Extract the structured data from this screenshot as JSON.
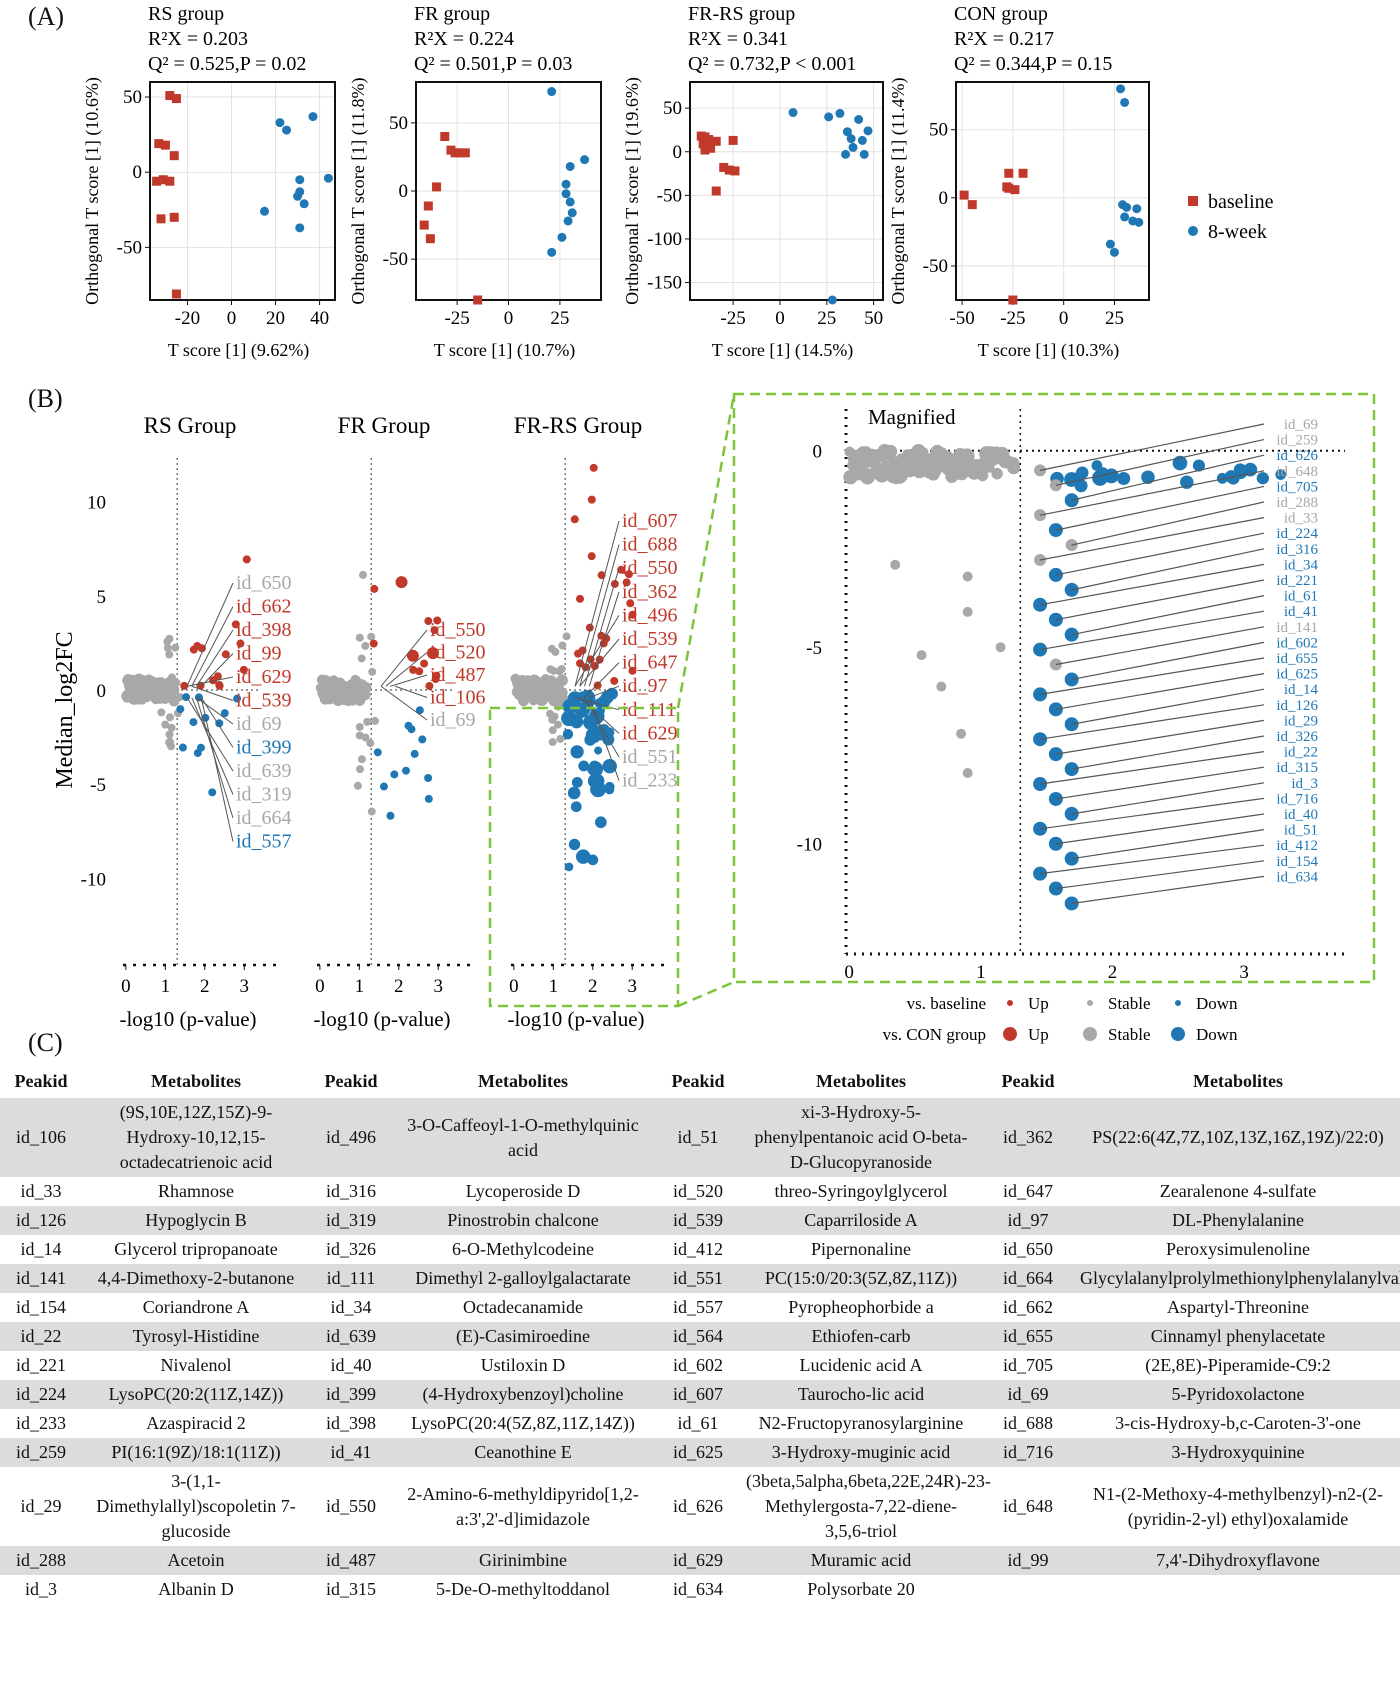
{
  "panel_labels": {
    "a": "(A)",
    "b": "(B)",
    "c": "(C)"
  },
  "colors": {
    "baseline": "#c0392b",
    "eight_week": "#1f78b4",
    "up": "#c0392b",
    "down": "#1f78b4",
    "stable": "#a8a8a8",
    "highlight_border": "#7dc43b",
    "table_shade": "#dcdcdc"
  },
  "chart_data": [
    {
      "type": "scatter",
      "panel": "A",
      "title": "RS group",
      "stats": [
        "R²X = 0.203",
        "Q² = 0.525,P = 0.02"
      ],
      "xlabel": "T score [1] (9.62%)",
      "ylabel": "Orthogonal T score [1] (10.6%)",
      "xlim": [
        -37,
        47
      ],
      "ylim": [
        -85,
        60
      ],
      "xticks": [
        -20,
        0,
        20,
        40
      ],
      "yticks": [
        -50,
        0,
        50
      ],
      "series": [
        {
          "name": "baseline",
          "marker": "square",
          "points": [
            [
              -28,
              51
            ],
            [
              -25,
              49
            ],
            [
              -33,
              19
            ],
            [
              -30,
              18
            ],
            [
              -26,
              11
            ],
            [
              -34,
              -6
            ],
            [
              -31,
              -5
            ],
            [
              -28,
              -6
            ],
            [
              -32,
              -31
            ],
            [
              -26,
              -30
            ],
            [
              -25,
              -81
            ]
          ]
        },
        {
          "name": "8-week",
          "marker": "circle",
          "points": [
            [
              22,
              33
            ],
            [
              25,
              28
            ],
            [
              37,
              37
            ],
            [
              44,
              -4
            ],
            [
              31,
              -5
            ],
            [
              31,
              -13
            ],
            [
              30,
              -16
            ],
            [
              33,
              -21
            ],
            [
              15,
              -26
            ],
            [
              31,
              -37
            ]
          ]
        }
      ]
    },
    {
      "type": "scatter",
      "panel": "A",
      "title": "FR group",
      "stats": [
        "R²X = 0.224",
        "Q² = 0.501,P = 0.03"
      ],
      "xlabel": "T score [1] (10.7%)",
      "ylabel": "Orthogonal T score [1] (11.8%)",
      "xlim": [
        -45,
        45
      ],
      "ylim": [
        -80,
        80
      ],
      "xticks": [
        -25,
        0,
        25
      ],
      "yticks": [
        -50,
        0,
        50
      ],
      "series": [
        {
          "name": "baseline",
          "marker": "square",
          "points": [
            [
              -31,
              40
            ],
            [
              -28,
              30
            ],
            [
              -26,
              28
            ],
            [
              -24,
              28
            ],
            [
              -21,
              28
            ],
            [
              -35,
              3
            ],
            [
              -39,
              -11
            ],
            [
              -41,
              -25
            ],
            [
              -38,
              -35
            ],
            [
              -15,
              -80
            ]
          ]
        },
        {
          "name": "8-week",
          "marker": "circle",
          "points": [
            [
              21,
              73
            ],
            [
              37,
              23
            ],
            [
              30,
              18
            ],
            [
              28,
              5
            ],
            [
              28,
              -2
            ],
            [
              30,
              -8
            ],
            [
              31,
              -16
            ],
            [
              29,
              -22
            ],
            [
              26,
              -34
            ],
            [
              21,
              -45
            ]
          ]
        }
      ]
    },
    {
      "type": "scatter",
      "panel": "A",
      "title": "FR-RS group",
      "stats": [
        "R²X = 0.341",
        "Q² = 0.732,P < 0.001"
      ],
      "xlabel": "T score [1] (14.5%)",
      "ylabel": "Orthogonal T score [1] (19.6%)",
      "xlim": [
        -48,
        55
      ],
      "ylim": [
        -170,
        80
      ],
      "xticks": [
        -25,
        0,
        25,
        50
      ],
      "yticks": [
        -150,
        -100,
        -50,
        0,
        50
      ],
      "series": [
        {
          "name": "baseline",
          "marker": "square",
          "points": [
            [
              -42,
              18
            ],
            [
              -40,
              17
            ],
            [
              -38,
              14
            ],
            [
              -41,
              9
            ],
            [
              -34,
              12
            ],
            [
              -25,
              13
            ],
            [
              -37,
              4
            ],
            [
              -40,
              2
            ],
            [
              -30,
              -18
            ],
            [
              -27,
              -21
            ],
            [
              -24,
              -22
            ],
            [
              -34,
              -45
            ]
          ]
        },
        {
          "name": "8-week",
          "marker": "circle",
          "points": [
            [
              7,
              45
            ],
            [
              26,
              40
            ],
            [
              32,
              44
            ],
            [
              42,
              37
            ],
            [
              47,
              24
            ],
            [
              36,
              23
            ],
            [
              38,
              15
            ],
            [
              44,
              13
            ],
            [
              39,
              5
            ],
            [
              35,
              -3
            ],
            [
              45,
              -3
            ],
            [
              28,
              -170
            ]
          ]
        }
      ]
    },
    {
      "type": "scatter",
      "panel": "A",
      "title": "CON group",
      "stats": [
        "R²X = 0.217",
        "Q² = 0.344,P = 0.15"
      ],
      "xlabel": "T score [1] (10.3%)",
      "ylabel": "Orthogonal T score [1] (11.4%)",
      "xlim": [
        -53,
        42
      ],
      "ylim": [
        -75,
        85
      ],
      "xticks": [
        -50,
        -25,
        0,
        25
      ],
      "yticks": [
        -50,
        0,
        50
      ],
      "series": [
        {
          "name": "baseline",
          "marker": "square",
          "points": [
            [
              -27,
              18
            ],
            [
              -20,
              18
            ],
            [
              -28,
              8
            ],
            [
              -27,
              7
            ],
            [
              -24,
              6
            ],
            [
              -49,
              2
            ],
            [
              -45,
              -5
            ],
            [
              -25,
              -75
            ]
          ]
        },
        {
          "name": "8-week",
          "marker": "circle",
          "points": [
            [
              28,
              80
            ],
            [
              30,
              70
            ],
            [
              29,
              -5
            ],
            [
              31,
              -7
            ],
            [
              36,
              -8
            ],
            [
              30,
              -14
            ],
            [
              34,
              -17
            ],
            [
              37,
              -18
            ],
            [
              23,
              -34
            ],
            [
              25,
              -40
            ]
          ]
        }
      ]
    },
    {
      "type": "scatter",
      "panel": "B",
      "title": "RS Group",
      "ylabel": "Median_log2FC",
      "xlabel": "-log10 (p-value)",
      "xlim": [
        -0.2,
        3.4
      ],
      "ylim": [
        -13,
        13
      ],
      "xticks": [
        0,
        1,
        2,
        3
      ],
      "yticks": [
        10,
        5,
        0,
        -5,
        -10
      ],
      "threshold": 1.3,
      "labels": [
        {
          "text": "id_650",
          "class": "stable"
        },
        {
          "text": "id_662",
          "class": "up"
        },
        {
          "text": "id_398",
          "class": "up"
        },
        {
          "text": "id_99",
          "class": "up"
        },
        {
          "text": "id_629",
          "class": "up"
        },
        {
          "text": "id_539",
          "class": "up"
        },
        {
          "text": "id_69",
          "class": "stable"
        },
        {
          "text": "id_399",
          "class": "down"
        },
        {
          "text": "id_639",
          "class": "stable"
        },
        {
          "text": "id_319",
          "class": "stable"
        },
        {
          "text": "id_664",
          "class": "stable"
        },
        {
          "text": "id_557",
          "class": "down"
        }
      ]
    },
    {
      "type": "scatter",
      "panel": "B",
      "title": "FR Group",
      "xlabel": "-log10 (p-value)",
      "xlim": [
        -0.2,
        3.4
      ],
      "ylim": [
        -13,
        13
      ],
      "xticks": [
        0,
        1,
        2,
        3
      ],
      "threshold": 1.3,
      "labels": [
        {
          "text": "id_550",
          "class": "up"
        },
        {
          "text": "id_520",
          "class": "up"
        },
        {
          "text": "id_487",
          "class": "up"
        },
        {
          "text": "id_106",
          "class": "up"
        },
        {
          "text": "id_69",
          "class": "stable"
        }
      ]
    },
    {
      "type": "scatter",
      "panel": "B",
      "title": "FR-RS Group",
      "xlabel": "-log10 (p-value)",
      "xlim": [
        -0.2,
        3.4
      ],
      "ylim": [
        -13,
        13
      ],
      "xticks": [
        0,
        1,
        2,
        3
      ],
      "threshold": 1.3,
      "labels": [
        {
          "text": "id_607",
          "class": "up"
        },
        {
          "text": "id_688",
          "class": "up"
        },
        {
          "text": "id_550",
          "class": "up"
        },
        {
          "text": "id_362",
          "class": "up"
        },
        {
          "text": "id_496",
          "class": "up"
        },
        {
          "text": "id_539",
          "class": "up"
        },
        {
          "text": "id_647",
          "class": "up"
        },
        {
          "text": "id_97",
          "class": "up"
        },
        {
          "text": "id_111",
          "class": "up"
        },
        {
          "text": "id_629",
          "class": "up"
        },
        {
          "text": "id_551",
          "class": "stable"
        },
        {
          "text": "id_233",
          "class": "stable"
        }
      ]
    },
    {
      "type": "scatter",
      "panel": "B",
      "title": "Magnified",
      "xlim": [
        -0.1,
        3.5
      ],
      "ylim": [
        -12.5,
        0.4
      ],
      "xticks": [
        0,
        1,
        2,
        3
      ],
      "yticks": [
        0,
        -5,
        -10
      ],
      "threshold": 1.3,
      "labels": [
        {
          "text": "id_69",
          "class": "stable"
        },
        {
          "text": "id_259",
          "class": "stable"
        },
        {
          "text": "id_626",
          "class": "down"
        },
        {
          "text": "id_648",
          "class": "stable"
        },
        {
          "text": "id_705",
          "class": "down"
        },
        {
          "text": "id_288",
          "class": "stable"
        },
        {
          "text": "id_33",
          "class": "stable"
        },
        {
          "text": "id_224",
          "class": "down"
        },
        {
          "text": "id_316",
          "class": "down"
        },
        {
          "text": "id_34",
          "class": "down"
        },
        {
          "text": "id_221",
          "class": "down"
        },
        {
          "text": "id_61",
          "class": "down"
        },
        {
          "text": "id_41",
          "class": "down"
        },
        {
          "text": "id_141",
          "class": "stable"
        },
        {
          "text": "id_602",
          "class": "down"
        },
        {
          "text": "id_655",
          "class": "down"
        },
        {
          "text": "id_625",
          "class": "down"
        },
        {
          "text": "id_14",
          "class": "down"
        },
        {
          "text": "id_126",
          "class": "down"
        },
        {
          "text": "id_29",
          "class": "down"
        },
        {
          "text": "id_326",
          "class": "down"
        },
        {
          "text": "id_22",
          "class": "down"
        },
        {
          "text": "id_315",
          "class": "down"
        },
        {
          "text": "id_3",
          "class": "down"
        },
        {
          "text": "id_716",
          "class": "down"
        },
        {
          "text": "id_40",
          "class": "down"
        },
        {
          "text": "id_51",
          "class": "down"
        },
        {
          "text": "id_412",
          "class": "down"
        },
        {
          "text": "id_154",
          "class": "down"
        },
        {
          "text": "id_634",
          "class": "down"
        }
      ]
    }
  ],
  "legend_a": [
    {
      "label": "baseline",
      "marker": "square"
    },
    {
      "label": "8-week",
      "marker": "circle"
    }
  ],
  "legend_b": {
    "rows": [
      {
        "title": "vs. baseline",
        "size": "small"
      },
      {
        "title": "vs. CON group",
        "size": "large"
      }
    ],
    "items": [
      "Up",
      "Stable",
      "Down"
    ]
  },
  "table": {
    "headers": [
      "Peakid",
      "Metabolites",
      "Peakid",
      "Metabolites",
      "Peakid",
      "Metabolites",
      "Peakid",
      "Metabolites"
    ],
    "rows": [
      [
        "id_106",
        "(9S,10E,12Z,15Z)-9-Hydroxy-10,12,15-octadecatrienoic acid",
        "id_496",
        "3-O-Caffeoyl-1-O-methylquinic acid",
        "id_51",
        "xi-3-Hydroxy-5-phenylpentanoic acid O-beta-D-Glucopyranoside",
        "id_362",
        "PS(22:6(4Z,7Z,10Z,13Z,16Z,19Z)/22:0)"
      ],
      [
        "id_33",
        "Rhamnose",
        "id_316",
        "Lycoperoside D",
        "id_520",
        "threo-Syringoylglycerol",
        "id_647",
        "Zearalenone 4-sulfate"
      ],
      [
        "id_126",
        "Hypoglycin B",
        "id_319",
        "Pinostrobin chalcone",
        "id_539",
        "Caparriloside A",
        "id_97",
        "DL-Phenylalanine"
      ],
      [
        "id_14",
        "Glycerol tripropanoate",
        "id_326",
        "6-O-Methylcodeine",
        "id_412",
        "Pipernonaline",
        "id_650",
        "Peroxysimulenoline"
      ],
      [
        "id_141",
        "4,4-Dimethoxy-2-butanone",
        "id_111",
        "Dimethyl 2-galloylgalactarate",
        "id_551",
        "PC(15:0/20:3(5Z,8Z,11Z))",
        "id_664",
        "Glycylalanylprolylmethionylphenylalanylvalinamide"
      ],
      [
        "id_154",
        "Coriandrone A",
        "id_34",
        "Octadecanamide",
        "id_557",
        "Pyropheophorbide a",
        "id_662",
        "Aspartyl-Threonine"
      ],
      [
        "id_22",
        "Tyrosyl-Histidine",
        "id_639",
        "(E)-Casimiroedine",
        "id_564",
        "Ethiofen-carb",
        "id_655",
        "Cinnamyl phenylacetate"
      ],
      [
        "id_221",
        "Nivalenol",
        "id_40",
        "Ustiloxin D",
        "id_602",
        "Lucidenic acid A",
        "id_705",
        "(2E,8E)-Piperamide-C9:2"
      ],
      [
        "id_224",
        "LysoPC(20:2(11Z,14Z))",
        "id_399",
        "(4-Hydroxybenzoyl)choline",
        "id_607",
        "Taurocho-lic acid",
        "id_69",
        "5-Pyridoxolactone"
      ],
      [
        "id_233",
        "Azaspiracid 2",
        "id_398",
        "LysoPC(20:4(5Z,8Z,11Z,14Z))",
        "id_61",
        "N2-Fructopyranosylarginine",
        "id_688",
        "3-cis-Hydroxy-b,c-Caroten-3'-one"
      ],
      [
        "id_259",
        "PI(16:1(9Z)/18:1(11Z))",
        "id_41",
        "Ceanothine E",
        "id_625",
        "3-Hydroxy-muginic acid",
        "id_716",
        "3-Hydroxyquinine"
      ],
      [
        "id_29",
        "3-(1,1-Dimethylallyl)scopoletin 7-glucoside",
        "id_550",
        "2-Amino-6-methyldipyrido[1,2-a:3',2'-d]imidazole",
        "id_626",
        "(3beta,5alpha,6beta,22E,24R)-23-Methylergosta-7,22-diene-3,5,6-triol",
        "id_648",
        "N1-(2-Methoxy-4-methylbenzyl)-n2-(2-(pyridin-2-yl) ethyl)oxalamide"
      ],
      [
        "id_288",
        "Acetoin",
        "id_487",
        "Girinimbine",
        "id_629",
        "Muramic acid",
        "id_99",
        "7,4'-Dihydroxyflavone"
      ],
      [
        "id_3",
        "Albanin D",
        "id_315",
        "5-De-O-methyltoddanol",
        "id_634",
        "Polysorbate 20",
        "",
        ""
      ]
    ]
  }
}
